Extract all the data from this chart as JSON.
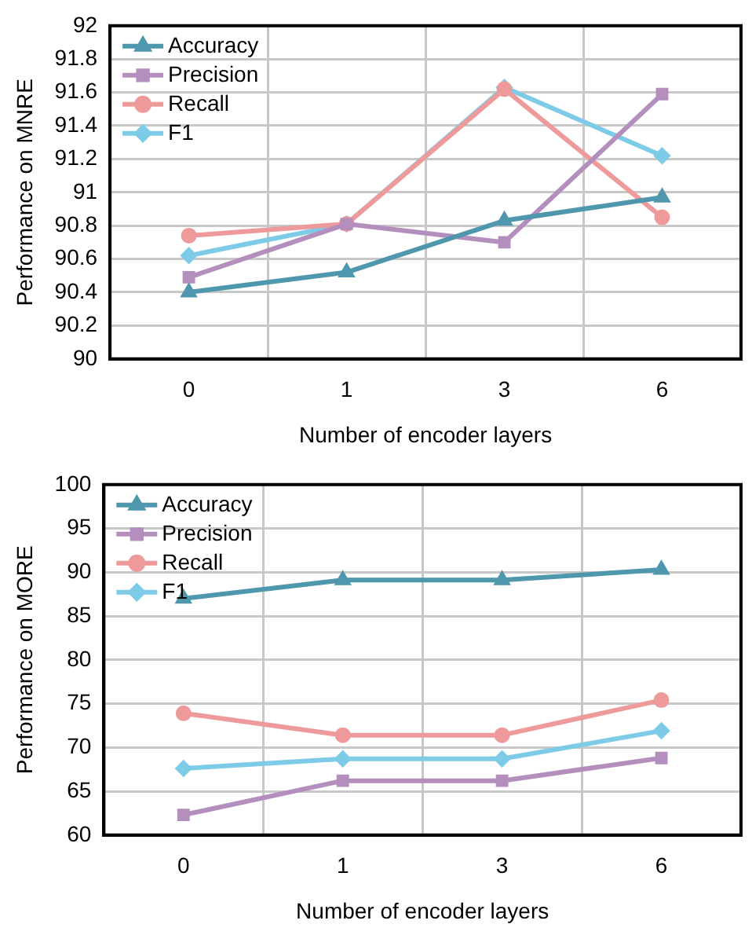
{
  "chart_data": [
    {
      "type": "line",
      "categories": [
        "0",
        "1",
        "3",
        "6"
      ],
      "xlabel": "Number of encoder layers",
      "ylabel": "Performance on MNRE",
      "ylim": [
        90,
        92
      ],
      "yticks": [
        90,
        90.2,
        90.4,
        90.6,
        90.8,
        91,
        91.2,
        91.4,
        91.6,
        91.8,
        92
      ],
      "grid": true,
      "legend": "top left",
      "series": [
        {
          "name": "Accuracy",
          "color": "#4e97ad",
          "marker": "triangle",
          "values": [
            90.4,
            90.52,
            90.83,
            90.97
          ]
        },
        {
          "name": "Precision",
          "color": "#b48fbd",
          "marker": "square",
          "values": [
            90.49,
            90.81,
            90.7,
            91.59
          ]
        },
        {
          "name": "Recall",
          "color": "#ee9a9a",
          "marker": "circle",
          "values": [
            90.74,
            90.81,
            91.62,
            90.85
          ]
        },
        {
          "name": "F1",
          "color": "#7ecbe8",
          "marker": "diamond",
          "values": [
            90.62,
            90.81,
            91.63,
            91.22
          ]
        }
      ]
    },
    {
      "type": "line",
      "categories": [
        "0",
        "1",
        "3",
        "6"
      ],
      "xlabel": "Number of encoder layers",
      "ylabel": "Performance on MORE",
      "ylim": [
        60,
        100
      ],
      "yticks": [
        60,
        65,
        70,
        75,
        80,
        85,
        90,
        95,
        100
      ],
      "grid": true,
      "legend": "top left",
      "series": [
        {
          "name": "Accuracy",
          "color": "#4e97ad",
          "marker": "triangle",
          "values": [
            87.0,
            89.1,
            89.1,
            90.3
          ]
        },
        {
          "name": "Precision",
          "color": "#b48fbd",
          "marker": "square",
          "values": [
            62.3,
            66.2,
            66.2,
            68.8
          ]
        },
        {
          "name": "Recall",
          "color": "#ee9a9a",
          "marker": "circle",
          "values": [
            73.9,
            71.4,
            71.4,
            75.4
          ]
        },
        {
          "name": "F1",
          "color": "#7ecbe8",
          "marker": "diamond",
          "values": [
            67.6,
            68.7,
            68.7,
            71.9
          ]
        }
      ]
    }
  ]
}
